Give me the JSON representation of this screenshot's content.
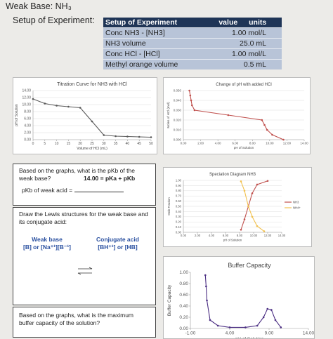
{
  "header": {
    "title": "Weak Base: NH₃",
    "setup_label": "Setup of Experiment:"
  },
  "table": {
    "columns": [
      "Setup of Experiment",
      "value",
      "units"
    ],
    "rows": [
      [
        "Conc NH3 - [NH3]",
        "1.00 mol/L"
      ],
      [
        "NH3 volume",
        "25.0 mL"
      ],
      [
        "Conc HCl - [HCl]",
        "1.00 mol/L"
      ],
      [
        "Methyl orange volume",
        "0.5 mL"
      ]
    ]
  },
  "boxes": {
    "pkb": {
      "question": "Based on the graphs, what is the pKb of the weak base?",
      "equation": "14.00 = pKa + pKb",
      "answer_label": "pKb of weak acid ="
    },
    "lewis": {
      "question": "Draw the Lewis structures for the weak base and its conjugate acid:",
      "base_title": "Weak base",
      "base_formula": "[B] or [Na⁺¹][B⁻¹]",
      "acid_title": "Conjugate acid",
      "acid_formula": "[BH⁺¹] or [HB]"
    },
    "buffer": {
      "question": "Based on the graphs, what is the maximum buffer capacity of the solution?"
    }
  },
  "chart_data": [
    {
      "type": "line",
      "title": "Titration Curve for NH3 with HCl",
      "xlabel": "Volume of HCl (mL)",
      "ylabel": "pH of Solution",
      "xlim": [
        0,
        50
      ],
      "ylim": [
        0,
        14
      ],
      "xticks": [
        0,
        5,
        10,
        15,
        20,
        25,
        30,
        35,
        40,
        45,
        50
      ],
      "yticks": [
        {
          "value": 0,
          "label": "0.00"
        },
        {
          "value": 2,
          "label": "2.00"
        },
        {
          "value": 4,
          "label": "4.00"
        },
        {
          "value": 6,
          "label": "6.00"
        },
        {
          "value": 8,
          "label": "8.00"
        },
        {
          "value": 10,
          "label": "10.00"
        },
        {
          "value": 12,
          "label": "12.00"
        },
        {
          "value": 14,
          "label": "14.00"
        }
      ],
      "grid": true,
      "markers": true,
      "series": [
        {
          "color": "#595959",
          "x": [
            0,
            5,
            10,
            15,
            20,
            25,
            30,
            35,
            40,
            45,
            50
          ],
          "values": [
            11.6,
            10.3,
            9.7,
            9.4,
            9.1,
            5.2,
            1.3,
            1.0,
            0.9,
            0.8,
            0.7
          ]
        }
      ]
    },
    {
      "type": "line",
      "title": "Change of pH with added HCl",
      "xlabel": "pH of Solution",
      "ylabel": "Moles of HCl (mol)",
      "xlim": [
        0,
        14
      ],
      "ylim": [
        0,
        0.05
      ],
      "xticks": [
        {
          "value": 0,
          "label": "0.00"
        },
        {
          "value": 2,
          "label": "2.00"
        },
        {
          "value": 4,
          "label": "4.00"
        },
        {
          "value": 6,
          "label": "6.00"
        },
        {
          "value": 8,
          "label": "8.00"
        },
        {
          "value": 10,
          "label": "10.00"
        },
        {
          "value": 12,
          "label": "12.00"
        },
        {
          "value": 14,
          "label": "14.00"
        }
      ],
      "yticks": [
        {
          "value": 0,
          "label": "0.000"
        },
        {
          "value": 0.01,
          "label": "0.010"
        },
        {
          "value": 0.02,
          "label": "0.020"
        },
        {
          "value": 0.03,
          "label": "0.030"
        },
        {
          "value": 0.04,
          "label": "0.040"
        },
        {
          "value": 0.05,
          "label": "0.050"
        }
      ],
      "grid": true,
      "markers": true,
      "series": [
        {
          "color": "#c0504d",
          "x": [
            11.6,
            10.3,
            9.7,
            9.4,
            9.1,
            5.2,
            1.3,
            1.0,
            0.9,
            0.8,
            0.7
          ],
          "values": [
            0,
            0.005,
            0.01,
            0.015,
            0.02,
            0.025,
            0.03,
            0.035,
            0.04,
            0.045,
            0.05
          ]
        }
      ]
    },
    {
      "type": "line",
      "title": "Speciation Diagram NH3",
      "xlabel": "pH of Solution",
      "ylabel": "Mole Fraction",
      "xlim": [
        0,
        14
      ],
      "ylim": [
        0,
        1
      ],
      "xticks": [
        {
          "value": 0,
          "label": "0.00"
        },
        {
          "value": 2,
          "label": "2.00"
        },
        {
          "value": 4,
          "label": "4.00"
        },
        {
          "value": 6,
          "label": "6.00"
        },
        {
          "value": 8,
          "label": "8.00"
        },
        {
          "value": 10,
          "label": "10.00"
        },
        {
          "value": 12,
          "label": "12.00"
        },
        {
          "value": 14,
          "label": "14.00"
        }
      ],
      "yticks": [
        {
          "value": 0,
          "label": "0.00"
        },
        {
          "value": 0.1,
          "label": "0.10"
        },
        {
          "value": 0.2,
          "label": "0.20"
        },
        {
          "value": 0.3,
          "label": "0.30"
        },
        {
          "value": 0.4,
          "label": "0.40"
        },
        {
          "value": 0.5,
          "label": "0.50"
        },
        {
          "value": 0.6,
          "label": "0.60"
        },
        {
          "value": 0.7,
          "label": "0.70"
        },
        {
          "value": 0.8,
          "label": "0.80"
        },
        {
          "value": 0.9,
          "label": "0.90"
        },
        {
          "value": 1,
          "label": "1.00"
        }
      ],
      "grid": true,
      "markers": true,
      "legend": "right",
      "series": [
        {
          "name": "NH3",
          "color": "#c0504d",
          "x": [
            8.2,
            8.7,
            9.25,
            9.8,
            10.5,
            12.0
          ],
          "values": [
            0.05,
            0.25,
            0.5,
            0.75,
            0.92,
            0.99
          ]
        },
        {
          "name": "NH4+",
          "color": "#f2c14e",
          "x": [
            8.2,
            8.7,
            9.25,
            9.8,
            10.5,
            11.5
          ],
          "values": [
            0.98,
            0.8,
            0.5,
            0.3,
            0.12,
            0.02
          ]
        }
      ]
    },
    {
      "type": "line",
      "title": "Buffer Capacity",
      "xlabel": "pH of Solution",
      "ylabel": "Buffer Capacity",
      "xlim": [
        -1,
        14
      ],
      "ylim": [
        0,
        1
      ],
      "xticks": [
        {
          "value": -1,
          "label": "-1.00"
        },
        {
          "value": 4,
          "label": "4.00"
        },
        {
          "value": 9,
          "label": "9.00"
        },
        {
          "value": 14,
          "label": "14.00"
        }
      ],
      "yticks": [
        {
          "value": 0,
          "label": "0.00"
        },
        {
          "value": 0.2,
          "label": "0.20"
        },
        {
          "value": 0.4,
          "label": "0.40"
        },
        {
          "value": 0.6,
          "label": "0.60"
        },
        {
          "value": 0.8,
          "label": "0.80"
        },
        {
          "value": 1,
          "label": "1.00"
        }
      ],
      "grid": false,
      "markers": true,
      "series": [
        {
          "color": "#4b2e83",
          "x": [
            0.9,
            1.0,
            1.1,
            1.5,
            2.5,
            4,
            6,
            7.5,
            8.3,
            8.8,
            9.3,
            9.8,
            10.5
          ],
          "values": [
            0.95,
            0.75,
            0.5,
            0.15,
            0.05,
            0.02,
            0.02,
            0.05,
            0.2,
            0.35,
            0.33,
            0.15,
            0.02
          ]
        }
      ]
    }
  ]
}
